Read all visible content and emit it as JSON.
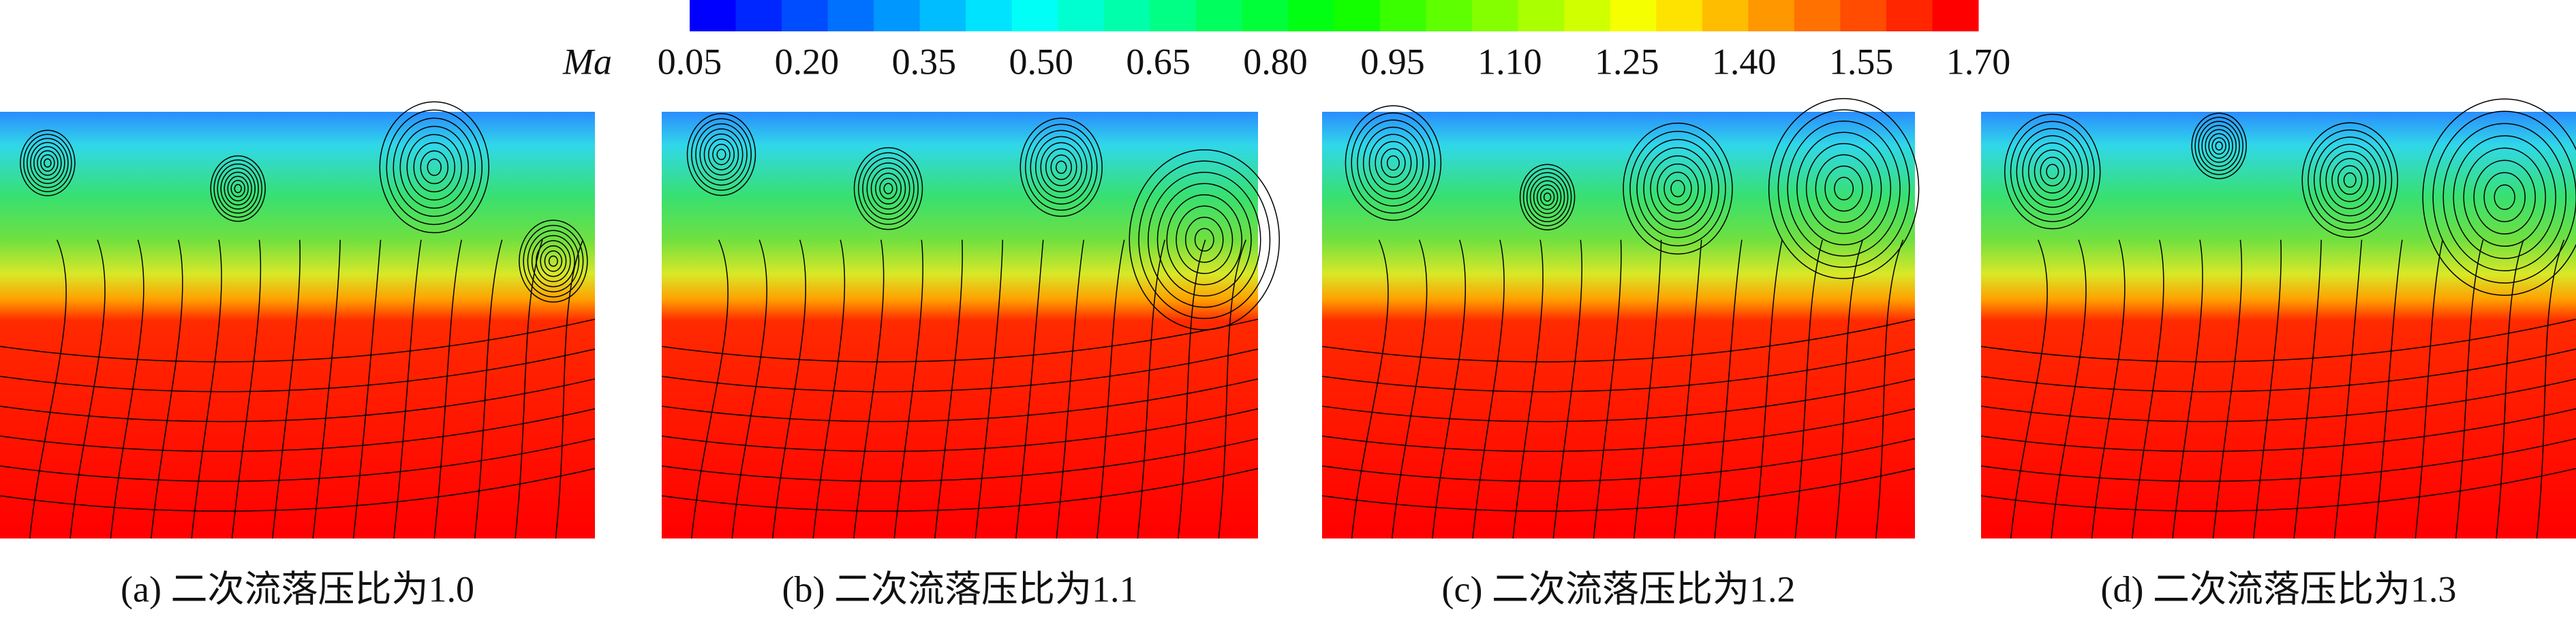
{
  "colorbar": {
    "label": "Ma",
    "ticks": [
      "0.05",
      "0.20",
      "0.35",
      "0.50",
      "0.65",
      "0.80",
      "0.95",
      "1.10",
      "1.25",
      "1.40",
      "1.55",
      "1.70"
    ]
  },
  "panels": [
    {
      "caption": "(a) 二次流落压比为1.0"
    },
    {
      "caption": "(b) 二次流落压比为1.1"
    },
    {
      "caption": "(c) 二次流落压比为1.2"
    },
    {
      "caption": "(d) 二次流落压比为1.3"
    }
  ]
}
